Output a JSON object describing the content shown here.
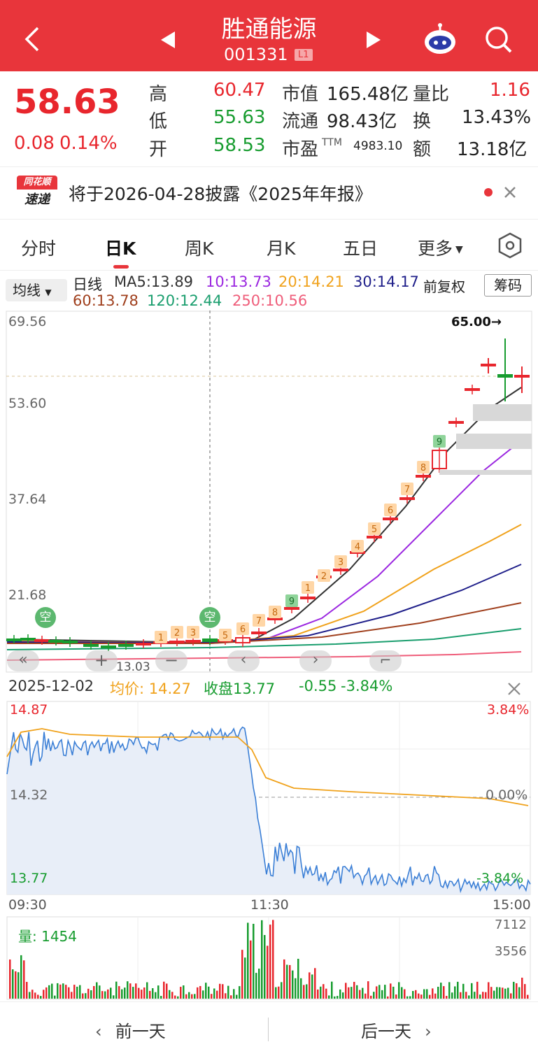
{
  "header": {
    "title": "胜通能源",
    "code": "001331",
    "level": "L1"
  },
  "quote": {
    "price": "58.63",
    "change": "0.08",
    "change_pct": "0.14%",
    "high_label": "高",
    "high": "60.47",
    "low_label": "低",
    "low": "55.63",
    "open_label": "开",
    "open": "58.53",
    "mktcap_label": "市值",
    "mktcap": "165.48亿",
    "float_label": "流通",
    "float": "98.43亿",
    "pe_label": "市盈",
    "pe_sup": "TTM",
    "pe": "4983.10",
    "vr_label": "量比",
    "vr": "1.16",
    "turn_label": "换",
    "turn": "13.43%",
    "amt_label": "额",
    "amt": "13.18亿"
  },
  "notice": {
    "badge_top": "同花顺",
    "badge_bottom": "速递",
    "text": "将于2026-04-28披露《2025年年报》"
  },
  "tabs": [
    "分时",
    "日K",
    "周K",
    "月K",
    "五日",
    "更多"
  ],
  "active_tab": "日K",
  "kline": {
    "ma_selector": "均线",
    "period": "日线",
    "ma5": "MA5:13.89",
    "ma10": "10:13.73",
    "ma20": "20:14.21",
    "ma30": "30:14.17",
    "ma60": "60:13.78",
    "ma120": "120:12.44",
    "ma250": "250:10.56",
    "adjust": "前复权",
    "chips": "筹码",
    "y_labels": [
      "69.56",
      "53.60",
      "37.64",
      "21.68"
    ],
    "limit_label": "65.00→",
    "low_marker": "13.03",
    "signal_kong": "空",
    "colors": {
      "ma5": "#333333",
      "ma10": "#9b27e0",
      "ma20": "#f0a21c",
      "ma30": "#1f1f8a",
      "ma60": "#a0401e",
      "ma120": "#1a9e6e",
      "ma250": "#ef5d7a"
    }
  },
  "chart_data": {
    "type": "line",
    "title": "",
    "date": "2025-12-02",
    "avg_label": "均价: 14.27",
    "close_label": "收盘13.77",
    "change": "-0.55",
    "change_pct": "-3.84%",
    "y_labels": [
      "14.87",
      "14.32",
      "13.77"
    ],
    "pct_labels": [
      "3.84%",
      "0.00%",
      "-3.84%"
    ],
    "x_labels": [
      "09:30",
      "11:30",
      "15:00"
    ],
    "ylim": [
      13.77,
      14.87
    ],
    "series": [],
    "volume_label": "量: 1454",
    "volume_ticks": [
      "7112",
      "3556"
    ]
  },
  "footer": {
    "prev": "前一天",
    "next": "后一天"
  }
}
